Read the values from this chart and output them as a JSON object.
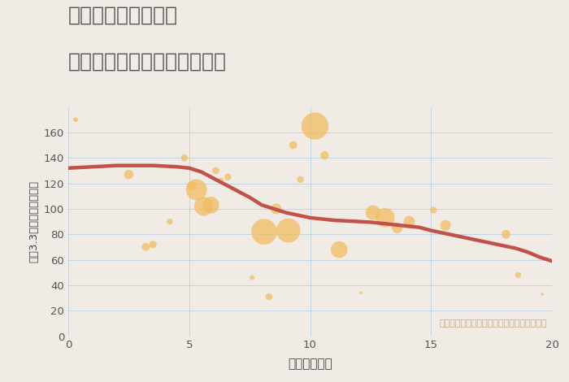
{
  "title_line1": "千葉県柏市五條谷の",
  "title_line2": "駅距離別中古マンション価格",
  "xlabel": "駅距離（分）",
  "ylabel": "坪（3.3㎡）単価（万円）",
  "background_color": "#f0ece5",
  "plot_bg_color": "#f0ece5",
  "bubble_color": "#f0bc60",
  "bubble_alpha": 0.75,
  "line_color": "#c0524a",
  "line_width": 3.2,
  "annotation": "円の大きさは、取引のあった物件面積を示す",
  "annotation_color": "#c8a882",
  "xlim": [
    0,
    20
  ],
  "ylim": [
    0,
    180
  ],
  "xticks": [
    0,
    5,
    10,
    15,
    20
  ],
  "yticks": [
    0,
    20,
    40,
    60,
    80,
    100,
    120,
    140,
    160
  ],
  "scatter_x": [
    0.3,
    2.5,
    3.2,
    3.5,
    4.2,
    4.8,
    5.1,
    5.3,
    5.6,
    5.9,
    6.1,
    6.3,
    6.6,
    7.6,
    8.1,
    8.3,
    8.6,
    9.1,
    9.3,
    9.6,
    10.2,
    10.6,
    11.2,
    12.1,
    12.6,
    13.1,
    13.6,
    14.1,
    15.1,
    15.6,
    18.1,
    18.6,
    19.6
  ],
  "scatter_y": [
    170,
    127,
    70,
    72,
    90,
    140,
    118,
    115,
    102,
    103,
    130,
    122,
    125,
    46,
    82,
    31,
    100,
    83,
    150,
    123,
    165,
    142,
    68,
    34,
    97,
    93,
    85,
    90,
    99,
    87,
    80,
    48,
    33
  ],
  "scatter_s": [
    18,
    70,
    50,
    45,
    28,
    38,
    60,
    350,
    280,
    220,
    40,
    32,
    38,
    18,
    520,
    38,
    90,
    460,
    50,
    38,
    580,
    55,
    220,
    7,
    170,
    290,
    90,
    100,
    33,
    90,
    60,
    28,
    7
  ],
  "trend_x": [
    0,
    0.5,
    1,
    1.5,
    2,
    2.5,
    3,
    3.5,
    4,
    4.5,
    5,
    5.5,
    6,
    6.5,
    7,
    7.5,
    8,
    8.5,
    9,
    9.5,
    10,
    10.5,
    11,
    11.5,
    12,
    12.5,
    13,
    13.5,
    14,
    14.5,
    15,
    15.5,
    16,
    16.5,
    17,
    17.5,
    18,
    18.5,
    19,
    19.5,
    20
  ],
  "trend_y": [
    132,
    132.5,
    133,
    133.5,
    134,
    134,
    134,
    134,
    133.5,
    133,
    132,
    129,
    124,
    119,
    114,
    109,
    103,
    100,
    97,
    95,
    93,
    92,
    91,
    90.5,
    90,
    89.5,
    88.5,
    87.5,
    86.5,
    85.5,
    83,
    81,
    79,
    77,
    75,
    73,
    71,
    69,
    66,
    62,
    59
  ]
}
